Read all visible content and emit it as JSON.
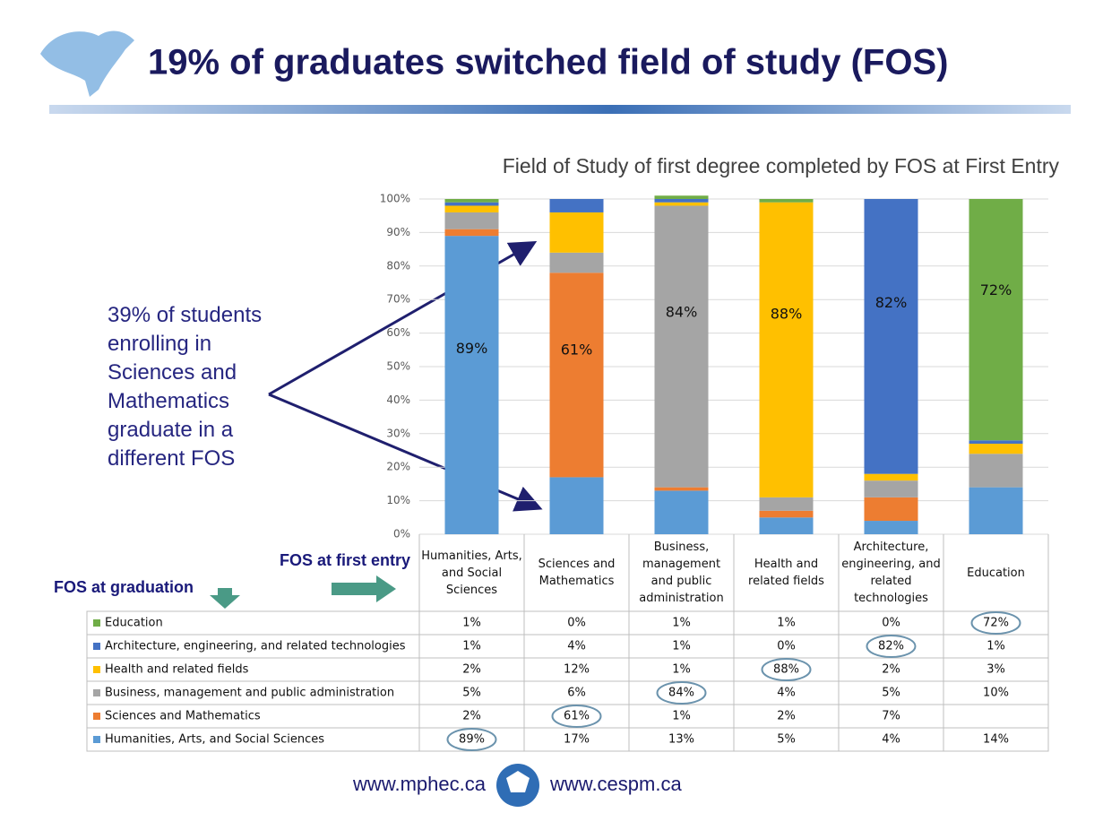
{
  "slide": {
    "title": "19% of graduates switched field of study (FOS)",
    "footer_links": [
      "www.mphec.ca",
      "www.cespm.ca"
    ]
  },
  "chart_data": {
    "type": "bar",
    "stacked": true,
    "title": "Field of Study of first degree completed by FOS at First Entry",
    "annotation": "39% of students enrolling in Sciences and Mathematics graduate in a different FOS",
    "x_label": "FOS at first entry",
    "legend_title": "FOS at graduation",
    "categories": [
      "Humanities, Arts, and Social Sciences",
      "Sciences and Mathematics",
      "Business, management and public administration",
      "Health and related fields",
      "Architecture, engineering, and related technologies",
      "Education"
    ],
    "ylim": [
      0,
      100
    ],
    "yticks": [
      {
        "value": 0,
        "label": "0%"
      },
      {
        "value": 10,
        "label": "10%"
      },
      {
        "value": 20,
        "label": "20%"
      },
      {
        "value": 30,
        "label": "30%"
      },
      {
        "value": 40,
        "label": "40%"
      },
      {
        "value": 50,
        "label": "50%"
      },
      {
        "value": 60,
        "label": "60%"
      },
      {
        "value": 70,
        "label": "70%"
      },
      {
        "value": 80,
        "label": "80%"
      },
      {
        "value": 90,
        "label": "90%"
      },
      {
        "value": 100,
        "label": "100%"
      }
    ],
    "grid": true,
    "series": [
      {
        "name": "Education",
        "color": "#70ad47",
        "values": [
          1,
          0,
          1,
          1,
          0,
          72
        ],
        "value_labels": [
          "1%",
          "0%",
          "1%",
          "1%",
          "0%",
          "72%"
        ]
      },
      {
        "name": "Architecture, engineering, and related technologies",
        "color": "#4472c4",
        "values": [
          1,
          4,
          1,
          0,
          82,
          1
        ],
        "value_labels": [
          "1%",
          "4%",
          "1%",
          "0%",
          "82%",
          "1%"
        ]
      },
      {
        "name": "Health and related fields",
        "color": "#ffc000",
        "values": [
          2,
          12,
          1,
          88,
          2,
          3
        ],
        "value_labels": [
          "2%",
          "12%",
          "1%",
          "88%",
          "2%",
          "3%"
        ]
      },
      {
        "name": "Business, management and public administration",
        "color": "#a5a5a5",
        "values": [
          5,
          6,
          84,
          4,
          5,
          10
        ],
        "value_labels": [
          "5%",
          "6%",
          "84%",
          "4%",
          "5%",
          "10%"
        ]
      },
      {
        "name": "Sciences and Mathematics",
        "color": "#ed7d31",
        "values": [
          2,
          61,
          1,
          2,
          7,
          null
        ],
        "value_labels": [
          "2%",
          "61%",
          "1%",
          "2%",
          "7%",
          null
        ]
      },
      {
        "name": "Humanities, Arts, and Social Sciences",
        "color": "#5b9bd5",
        "values": [
          89,
          17,
          13,
          5,
          4,
          14
        ],
        "value_labels": [
          "89%",
          "17%",
          "13%",
          "5%",
          "4%",
          "14%"
        ]
      }
    ]
  }
}
